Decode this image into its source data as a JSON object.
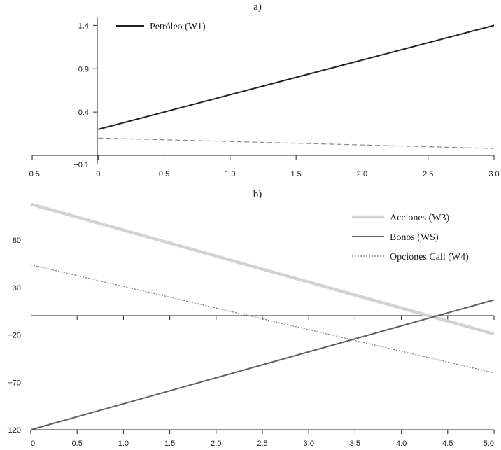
{
  "chart_data": [
    {
      "type": "line",
      "panel_label": "a)",
      "x_ticks": [
        "−0.5",
        "0",
        "0.5",
        "1.0",
        "1.5",
        "2.0",
        "2.5",
        "3.0"
      ],
      "x_tick_values": [
        -0.5,
        0,
        0.5,
        1.0,
        1.5,
        2.0,
        2.5,
        3.0
      ],
      "y_ticks": [
        "1.4",
        "0.9",
        "0.4",
        "−0.1"
      ],
      "y_tick_values": [
        1.4,
        0.9,
        0.4,
        -0.1
      ],
      "xlim": [
        -0.5,
        3.0
      ],
      "ylim": [
        -0.1,
        1.5
      ],
      "grid": false,
      "legend_position": "top-left",
      "series": [
        {
          "name": "Petróleo (W1)",
          "x": [
            0,
            3.0
          ],
          "y": [
            0.2,
            1.4
          ],
          "color": "#222222",
          "style": "solid",
          "in_legend": true
        },
        {
          "name": "",
          "x": [
            0,
            3.0
          ],
          "y": [
            0.1,
            -0.02
          ],
          "color": "#888888",
          "style": "dashed",
          "in_legend": false
        }
      ]
    },
    {
      "type": "line",
      "panel_label": "b)",
      "x_ticks": [
        "0",
        "0.5",
        "1.0",
        "1.5",
        "2.0",
        "2.5",
        "3.0",
        "3.5",
        "4.0",
        "4.5",
        "5.0"
      ],
      "x_tick_values": [
        0,
        0.5,
        1.0,
        1.5,
        2.0,
        2.5,
        3.0,
        3.5,
        4.0,
        4.5,
        5.0
      ],
      "y_ticks": [
        "80",
        "30",
        "−20",
        "−70",
        "−120"
      ],
      "y_tick_values": [
        80,
        30,
        -20,
        -70,
        -120
      ],
      "xlim": [
        0,
        5.0
      ],
      "ylim": [
        -120,
        120
      ],
      "grid": false,
      "legend_position": "top-right",
      "series": [
        {
          "name": "Acciones (W3)",
          "x": [
            0,
            5.0
          ],
          "y": [
            118,
            -19
          ],
          "color": "#d3d3d3",
          "style": "thick",
          "in_legend": true
        },
        {
          "name": "Bonos (WS)",
          "x": [
            0,
            5.0
          ],
          "y": [
            -120,
            17
          ],
          "color": "#606060",
          "style": "solid",
          "in_legend": true
        },
        {
          "name": "Opciones Call (W4)",
          "x": [
            0,
            5.0
          ],
          "y": [
            54,
            -60
          ],
          "color": "#777777",
          "style": "dotted",
          "in_legend": true
        }
      ]
    }
  ]
}
